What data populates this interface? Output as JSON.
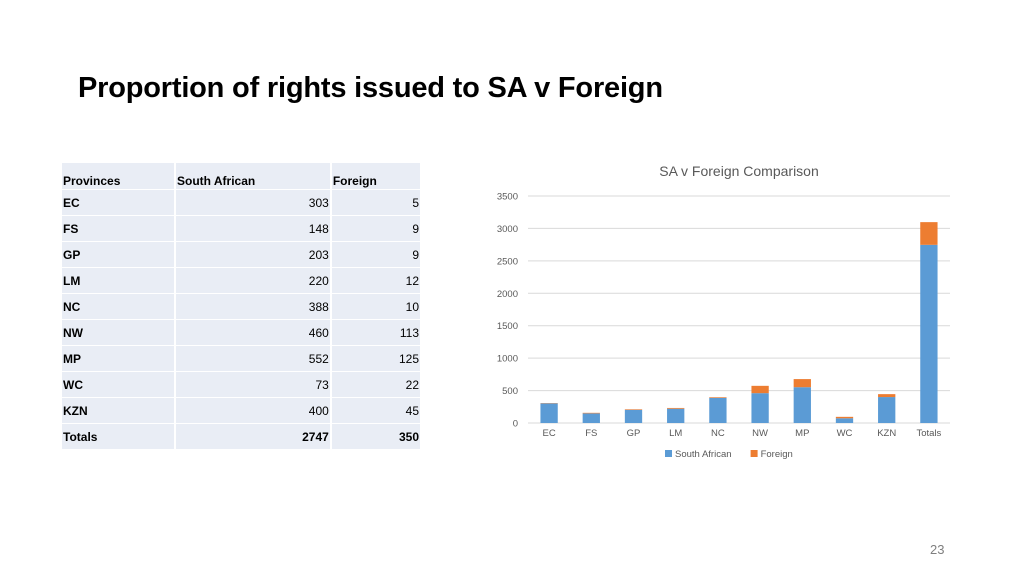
{
  "slide": {
    "title": "Proportion of rights issued to SA v Foreign",
    "page_number": "23"
  },
  "table": {
    "headers": [
      "Provinces",
      "South African",
      "Foreign"
    ],
    "rows": [
      [
        "EC",
        "303",
        "5"
      ],
      [
        "FS",
        "148",
        "9"
      ],
      [
        "GP",
        "203",
        "9"
      ],
      [
        "LM",
        "220",
        "12"
      ],
      [
        "NC",
        "388",
        "10"
      ],
      [
        "NW",
        "460",
        "113"
      ],
      [
        "MP",
        "552",
        "125"
      ],
      [
        "WC",
        "73",
        "22"
      ],
      [
        "KZN",
        "400",
        "45"
      ],
      [
        "Totals",
        "2747",
        "350"
      ]
    ]
  },
  "chart_data": {
    "type": "bar",
    "stacked": true,
    "title": "SA v Foreign Comparison",
    "categories": [
      "EC",
      "FS",
      "GP",
      "LM",
      "NC",
      "NW",
      "MP",
      "WC",
      "KZN",
      "Totals"
    ],
    "series": [
      {
        "name": "South African",
        "color": "#5b9bd5",
        "values": [
          303,
          148,
          203,
          220,
          388,
          460,
          552,
          73,
          400,
          2747
        ]
      },
      {
        "name": "Foreign",
        "color": "#ed7d31",
        "values": [
          5,
          9,
          9,
          12,
          10,
          113,
          125,
          22,
          45,
          350
        ]
      }
    ],
    "ylim": [
      0,
      3500
    ],
    "yticks": [
      0,
      500,
      1000,
      1500,
      2000,
      2500,
      3000,
      3500
    ],
    "grid": true,
    "legend": "bottom"
  }
}
